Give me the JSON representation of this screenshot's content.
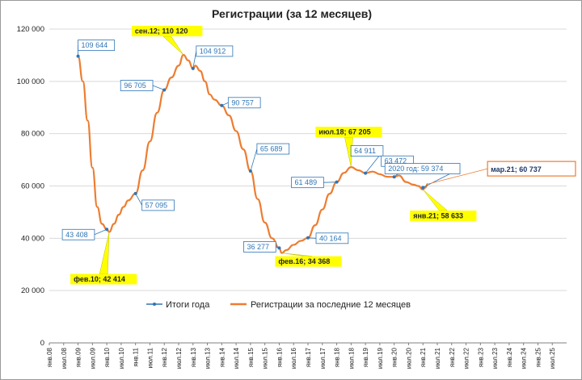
{
  "chart_data": {
    "type": "line",
    "title": "Регистрации  (за 12 месяцев)",
    "xlabel": "",
    "ylabel": "",
    "ylim": [
      0,
      120000
    ],
    "yticks": [
      0,
      20000,
      40000,
      60000,
      80000,
      100000,
      120000
    ],
    "ytick_labels": [
      "0",
      "20 000",
      "40 000",
      "60 000",
      "80 000",
      "100 000",
      "120 000"
    ],
    "grid": true,
    "legend_position": "bottom",
    "x_tick_labels": [
      "янв.08",
      "июл.08",
      "янв.09",
      "июл.09",
      "янв.10",
      "июл.10",
      "янв.11",
      "июл.11",
      "янв.12",
      "июл.12",
      "янв.13",
      "июл.13",
      "янв.14",
      "июл.14",
      "янв.15",
      "июл.15",
      "янв.16",
      "июл.16",
      "янв.17",
      "июл.17",
      "янв.18",
      "июл.18",
      "янв.19",
      "июл.19",
      "янв.20",
      "июл.20",
      "янв.21",
      "июл.21",
      "янв.22",
      "июл.22",
      "янв.23",
      "июл.23",
      "янв.24",
      "июл.24",
      "янв.25",
      "июл.25"
    ],
    "series": [
      {
        "name": "Итоги года",
        "color": "#2e75b6",
        "points": [
          {
            "x": "янв.09",
            "y": 109644
          },
          {
            "x": "янв.10",
            "y": 43408
          },
          {
            "x": "янв.11",
            "y": 57095
          },
          {
            "x": "янв.12",
            "y": 96705
          },
          {
            "x": "янв.13",
            "y": 104912
          },
          {
            "x": "янв.14",
            "y": 90757
          },
          {
            "x": "янв.15",
            "y": 65689
          },
          {
            "x": "янв.16",
            "y": 36277
          },
          {
            "x": "янв.17",
            "y": 40164
          },
          {
            "x": "янв.18",
            "y": 61489
          },
          {
            "x": "янв.19",
            "y": 64911
          },
          {
            "x": "янв.20",
            "y": 63472
          },
          {
            "x": "янв.21",
            "y": 59374
          }
        ]
      },
      {
        "name": "Регистрации за последние 12 месяцев",
        "color": "#ed7d31",
        "points": [
          {
            "x": "янв.09",
            "y": 109644
          },
          {
            "x": "мар.09",
            "y": 100000
          },
          {
            "x": "май.09",
            "y": 85000
          },
          {
            "x": "июл.09",
            "y": 67000
          },
          {
            "x": "сен.09",
            "y": 52000
          },
          {
            "x": "ноя.09",
            "y": 45500
          },
          {
            "x": "янв.10",
            "y": 43408
          },
          {
            "x": "фев.10",
            "y": 42414
          },
          {
            "x": "апр.10",
            "y": 45500
          },
          {
            "x": "июн.10",
            "y": 49000
          },
          {
            "x": "авг.10",
            "y": 52000
          },
          {
            "x": "окт.10",
            "y": 54500
          },
          {
            "x": "янв.11",
            "y": 57095
          },
          {
            "x": "апр.11",
            "y": 66000
          },
          {
            "x": "июл.11",
            "y": 77000
          },
          {
            "x": "окт.11",
            "y": 88000
          },
          {
            "x": "янв.12",
            "y": 96705
          },
          {
            "x": "апр.12",
            "y": 101500
          },
          {
            "x": "июл.12",
            "y": 106000
          },
          {
            "x": "сен.12",
            "y": 110120
          },
          {
            "x": "ноя.12",
            "y": 108000
          },
          {
            "x": "янв.13",
            "y": 104912
          },
          {
            "x": "фев.13",
            "y": 106000
          },
          {
            "x": "апр.13",
            "y": 104000
          },
          {
            "x": "июн.13",
            "y": 100000
          },
          {
            "x": "авг.13",
            "y": 95000
          },
          {
            "x": "окт.13",
            "y": 93000
          },
          {
            "x": "янв.14",
            "y": 90757
          },
          {
            "x": "апр.14",
            "y": 87000
          },
          {
            "x": "июл.14",
            "y": 81000
          },
          {
            "x": "окт.14",
            "y": 74000
          },
          {
            "x": "янв.15",
            "y": 65689
          },
          {
            "x": "апр.15",
            "y": 55000
          },
          {
            "x": "июл.15",
            "y": 46000
          },
          {
            "x": "окт.15",
            "y": 40000
          },
          {
            "x": "янв.16",
            "y": 36277
          },
          {
            "x": "фев.16",
            "y": 34368
          },
          {
            "x": "апр.16",
            "y": 35500
          },
          {
            "x": "июл.16",
            "y": 37500
          },
          {
            "x": "окт.16",
            "y": 39000
          },
          {
            "x": "янв.17",
            "y": 40164
          },
          {
            "x": "апр.17",
            "y": 45000
          },
          {
            "x": "июл.17",
            "y": 51000
          },
          {
            "x": "окт.17",
            "y": 57000
          },
          {
            "x": "янв.18",
            "y": 61489
          },
          {
            "x": "апр.18",
            "y": 65000
          },
          {
            "x": "июл.18",
            "y": 67205
          },
          {
            "x": "окт.18",
            "y": 66000
          },
          {
            "x": "янв.19",
            "y": 64911
          },
          {
            "x": "апр.19",
            "y": 65500
          },
          {
            "x": "июл.19",
            "y": 64500
          },
          {
            "x": "окт.19",
            "y": 63500
          },
          {
            "x": "янв.20",
            "y": 63472
          },
          {
            "x": "мар.20",
            "y": 64000
          },
          {
            "x": "июн.20",
            "y": 61500
          },
          {
            "x": "сен.20",
            "y": 60500
          },
          {
            "x": "ноя.20",
            "y": 60000
          },
          {
            "x": "янв.21",
            "y": 58633
          },
          {
            "x": "фев.21",
            "y": 59374
          },
          {
            "x": "мар.21",
            "y": 60737
          }
        ]
      }
    ],
    "callouts": [
      {
        "text": "109 644",
        "x": "янв.09",
        "y": 109644,
        "style": "blue"
      },
      {
        "text": "43 408",
        "x": "янв.10",
        "y": 43408,
        "style": "blue"
      },
      {
        "text": "фев.10; 42 414",
        "x": "фев.10",
        "y": 42414,
        "style": "yellow"
      },
      {
        "text": "57 095",
        "x": "янв.11",
        "y": 57095,
        "style": "blue"
      },
      {
        "text": "96 705",
        "x": "янв.12",
        "y": 96705,
        "style": "blue"
      },
      {
        "text": "сен.12; 110 120",
        "x": "сен.12",
        "y": 110120,
        "style": "yellow"
      },
      {
        "text": "104 912",
        "x": "янв.13",
        "y": 104912,
        "style": "blue"
      },
      {
        "text": "90 757",
        "x": "янв.14",
        "y": 90757,
        "style": "blue"
      },
      {
        "text": "65 689",
        "x": "янв.15",
        "y": 65689,
        "style": "blue"
      },
      {
        "text": "36 277",
        "x": "янв.16",
        "y": 36277,
        "style": "blue"
      },
      {
        "text": "фев.16; 34 368",
        "x": "фев.16",
        "y": 34368,
        "style": "yellow"
      },
      {
        "text": "40 164",
        "x": "янв.17",
        "y": 40164,
        "style": "blue"
      },
      {
        "text": "61 489",
        "x": "янв.18",
        "y": 61489,
        "style": "blue"
      },
      {
        "text": "июл.18; 67 205",
        "x": "июл.18",
        "y": 67205,
        "style": "yellow"
      },
      {
        "text": "64 911",
        "x": "янв.19",
        "y": 64911,
        "style": "blue"
      },
      {
        "text": "63 472",
        "x": "янв.20",
        "y": 63472,
        "style": "blue"
      },
      {
        "text": "2020 год: 59 374",
        "x": "янв.21",
        "y": 59374,
        "style": "blue"
      },
      {
        "text": "янв.21; 58 633",
        "x": "янв.21",
        "y": 58633,
        "style": "yellow"
      },
      {
        "text": "мар.21; 60 737",
        "x": "мар.21",
        "y": 60737,
        "style": "large"
      }
    ]
  }
}
